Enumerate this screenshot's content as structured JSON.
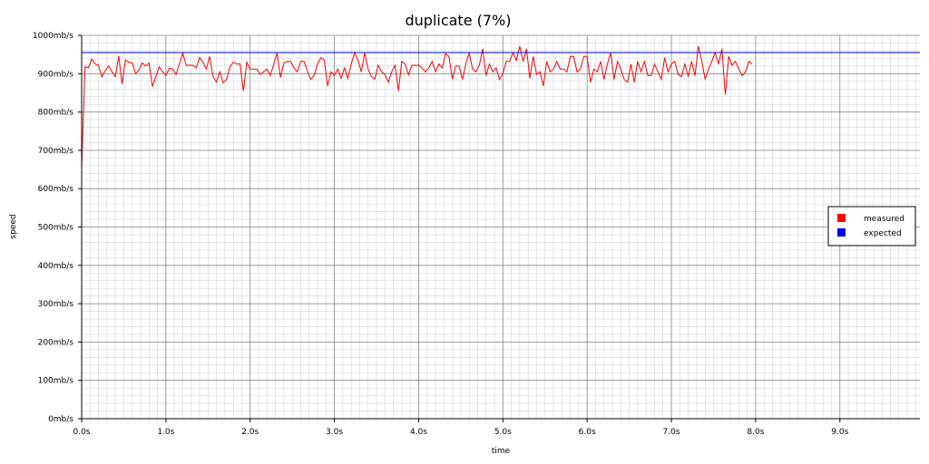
{
  "chart_data": {
    "type": "line",
    "title": "duplicate (7%)",
    "xlabel": "time",
    "ylabel": "speed",
    "xlim": [
      0,
      9.95
    ],
    "ylim": [
      0,
      1000
    ],
    "grid": true,
    "legend_position": "right",
    "x_ticks": [
      "0.0s",
      "1.0s",
      "2.0s",
      "3.0s",
      "4.0s",
      "5.0s",
      "6.0s",
      "7.0s",
      "8.0s",
      "9.0s"
    ],
    "x_tick_values": [
      0,
      1,
      2,
      3,
      4,
      5,
      6,
      7,
      8,
      9
    ],
    "y_ticks": [
      "0mb/s",
      "100mb/s",
      "200mb/s",
      "300mb/s",
      "400mb/s",
      "500mb/s",
      "600mb/s",
      "700mb/s",
      "800mb/s",
      "900mb/s",
      "1000mb/s"
    ],
    "y_tick_values": [
      0,
      100,
      200,
      300,
      400,
      500,
      600,
      700,
      800,
      900,
      1000
    ],
    "sample_interval": 0.04,
    "series": [
      {
        "name": "measured",
        "color": "#ff0000",
        "values": [
          655,
          918,
          915,
          938,
          925,
          922,
          892,
          908,
          920,
          905,
          892,
          946,
          873,
          936,
          930,
          928,
          900,
          910,
          928,
          920,
          928,
          866,
          892,
          918,
          905,
          895,
          914,
          912,
          898,
          925,
          954,
          922,
          922,
          922,
          915,
          942,
          930,
          912,
          945,
          892,
          878,
          905,
          876,
          885,
          918,
          930,
          925,
          926,
          855,
          930,
          912,
          912,
          912,
          898,
          905,
          912,
          895,
          925,
          954,
          890,
          928,
          932,
          932,
          915,
          905,
          932,
          932,
          906,
          885,
          896,
          925,
          942,
          935,
          868,
          905,
          895,
          912,
          888,
          915,
          888,
          925,
          955,
          935,
          905,
          955,
          912,
          892,
          886,
          922,
          905,
          898,
          878,
          905,
          922,
          855,
          932,
          925,
          897,
          922,
          922,
          922,
          915,
          905,
          915,
          932,
          905,
          925,
          915,
          952,
          945,
          886,
          920,
          920,
          885,
          925,
          955,
          912,
          905,
          922,
          965,
          895,
          925,
          905,
          915,
          885,
          900,
          932,
          932,
          955,
          935,
          972,
          932,
          965,
          888,
          945,
          898,
          905,
          868,
          932,
          905,
          912,
          932,
          912,
          912,
          905,
          945,
          945,
          905,
          912,
          945,
          945,
          878,
          912,
          905,
          932,
          885,
          925,
          955,
          885,
          932,
          912,
          885,
          878,
          925,
          878,
          932,
          905,
          932,
          895,
          895,
          925,
          905,
          885,
          942,
          905,
          925,
          932,
          898,
          892,
          925,
          892,
          932,
          895,
          972,
          935,
          885,
          912,
          932,
          955,
          925,
          965,
          845,
          945,
          922,
          932,
          912,
          895,
          905,
          932,
          925
        ]
      },
      {
        "name": "expected",
        "color": "#0000ff",
        "values": [
          955,
          955
        ]
      }
    ]
  }
}
